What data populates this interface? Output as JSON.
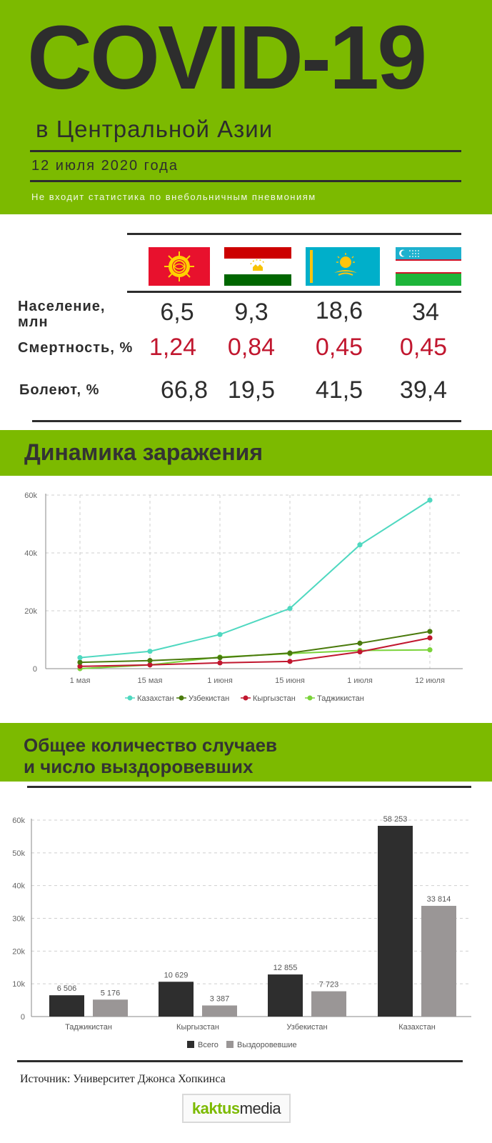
{
  "header": {
    "title": "COVID-19",
    "subtitle": "в Центральной Азии",
    "date": "12 июля 2020 года",
    "note": "Не входит статистика по внебольничным пневмониям"
  },
  "stats_table": {
    "columns": [
      "Кыргызстан",
      "Таджикистан",
      "Казахстан",
      "Узбекистан"
    ],
    "rows": [
      {
        "label": "Население,\nмлн",
        "values": [
          "6,5",
          "9,3",
          "18,6",
          "34"
        ]
      },
      {
        "label": "Смертность, %",
        "values": [
          "1,24",
          "0,84",
          "0,45",
          "0,45"
        ]
      },
      {
        "label": "Болеют, %",
        "values": [
          "66,8",
          "19,5",
          "41,5",
          "39,4"
        ]
      }
    ]
  },
  "section1": {
    "title": "Динамика заражения"
  },
  "section2": {
    "title_line1": "Общее количество случаев",
    "title_line2": "и число выздоровевших"
  },
  "colors": {
    "green": "#7cba00",
    "red": "#c1172f",
    "kazakhstan": "#4fd8c0",
    "uzbekistan": "#4a7a0c",
    "kyrgyzstan": "#c1172f",
    "tajikistan": "#7bd33a",
    "total": "#2e2e2e",
    "recovered": "#9a9696"
  },
  "chart_data": [
    {
      "type": "line",
      "x": [
        "1 мая",
        "15 мая",
        "1 июня",
        "15 июня",
        "1 июля",
        "12 июля"
      ],
      "yticks": [
        "0",
        "20k",
        "40k",
        "60k"
      ],
      "ylim": [
        0,
        60000
      ],
      "grid": true,
      "legend": "bottom",
      "series": [
        {
          "name": "Казахстан",
          "values": [
            3800,
            6000,
            11800,
            20800,
            42800,
            58253
          ]
        },
        {
          "name": "Узбекистан",
          "values": [
            2200,
            2800,
            3800,
            5400,
            8800,
            12855
          ]
        },
        {
          "name": "Кыргызстан",
          "values": [
            800,
            1300,
            2000,
            2500,
            5800,
            10629
          ]
        },
        {
          "name": "Таджикистан",
          "values": [
            0,
            1300,
            4000,
            5200,
            6300,
            6506
          ]
        }
      ]
    },
    {
      "type": "bar",
      "categories": [
        "Таджикистан",
        "Кыргызстан",
        "Узбекистан",
        "Казахстан"
      ],
      "yticks": [
        "0",
        "10k",
        "20k",
        "30k",
        "40k",
        "50k",
        "60k"
      ],
      "ylim": [
        0,
        60000
      ],
      "grid": true,
      "legend": "bottom",
      "series": [
        {
          "name": "Всего",
          "values": [
            6506,
            10629,
            12855,
            58253
          ],
          "labels": [
            "6 506",
            "10 629",
            "12 855",
            "58 253"
          ]
        },
        {
          "name": "Выздоровевшие",
          "values": [
            5176,
            3387,
            7723,
            33814
          ],
          "labels": [
            "5 176",
            "3 387",
            "7 723",
            "33 814"
          ]
        }
      ]
    }
  ],
  "footer": {
    "source": "Источник: Университет Джонса Хопкинса",
    "logo_part1": "kaktus",
    "logo_part2": "media"
  }
}
